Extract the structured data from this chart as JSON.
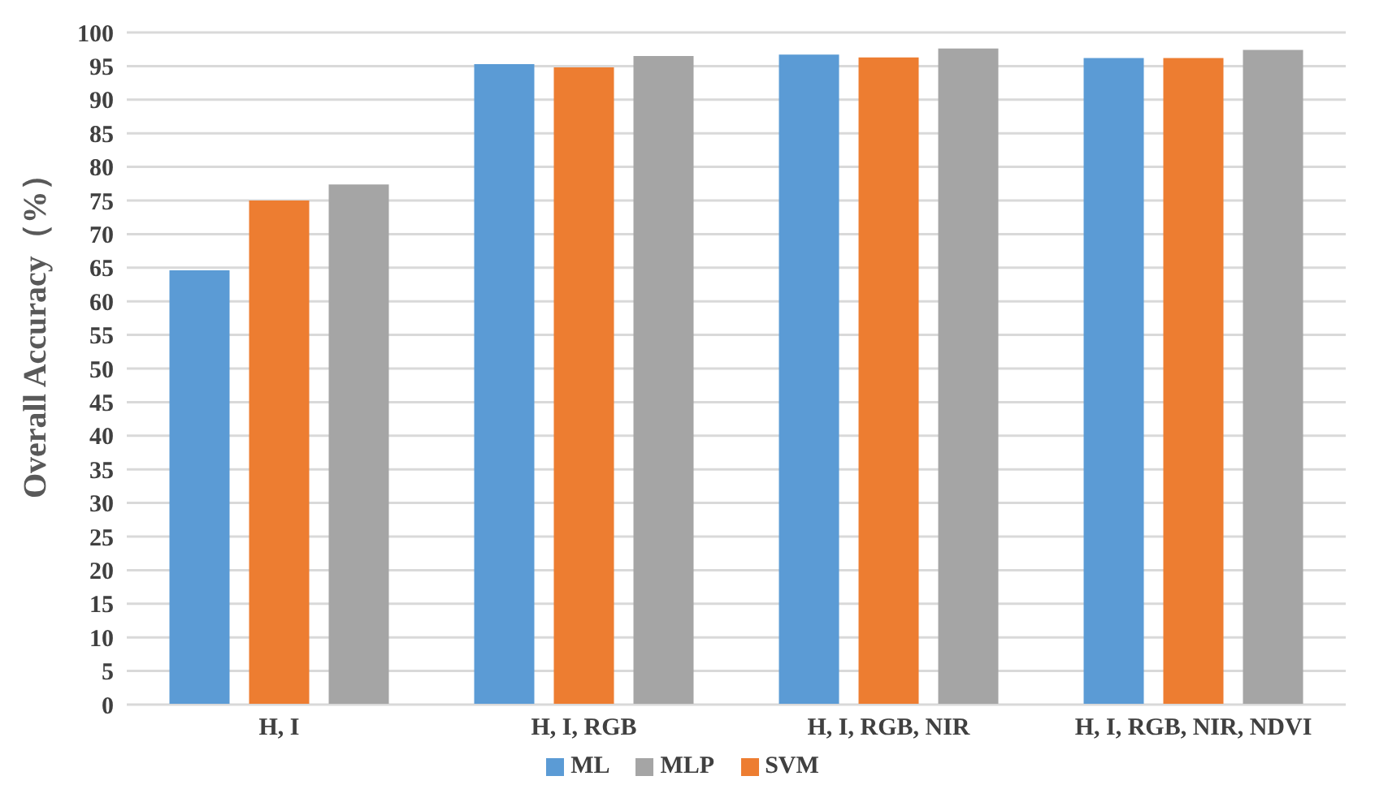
{
  "chart_data": {
    "type": "bar",
    "ylabel": "Overall Accuracy（%）",
    "categories": [
      "H, I",
      "H, I, RGB",
      "H, I, RGB, NIR",
      "H, I, RGB, NIR, NDVI"
    ],
    "series": [
      {
        "name": "ML",
        "color": "#5b9bd5",
        "values": [
          64.6,
          95.3,
          96.7,
          96.2
        ]
      },
      {
        "name": "SVM",
        "color": "#ed7d31",
        "values": [
          75.0,
          94.8,
          96.3,
          96.2
        ]
      },
      {
        "name": "MLP",
        "color": "#a5a5a5",
        "values": [
          77.4,
          96.5,
          97.6,
          97.4
        ]
      }
    ],
    "ylim": [
      0,
      100
    ],
    "yticks": [
      0,
      5,
      10,
      15,
      20,
      25,
      30,
      35,
      40,
      45,
      50,
      55,
      60,
      65,
      70,
      75,
      80,
      85,
      90,
      95,
      100
    ],
    "grid": "y",
    "legend": "bottom"
  }
}
